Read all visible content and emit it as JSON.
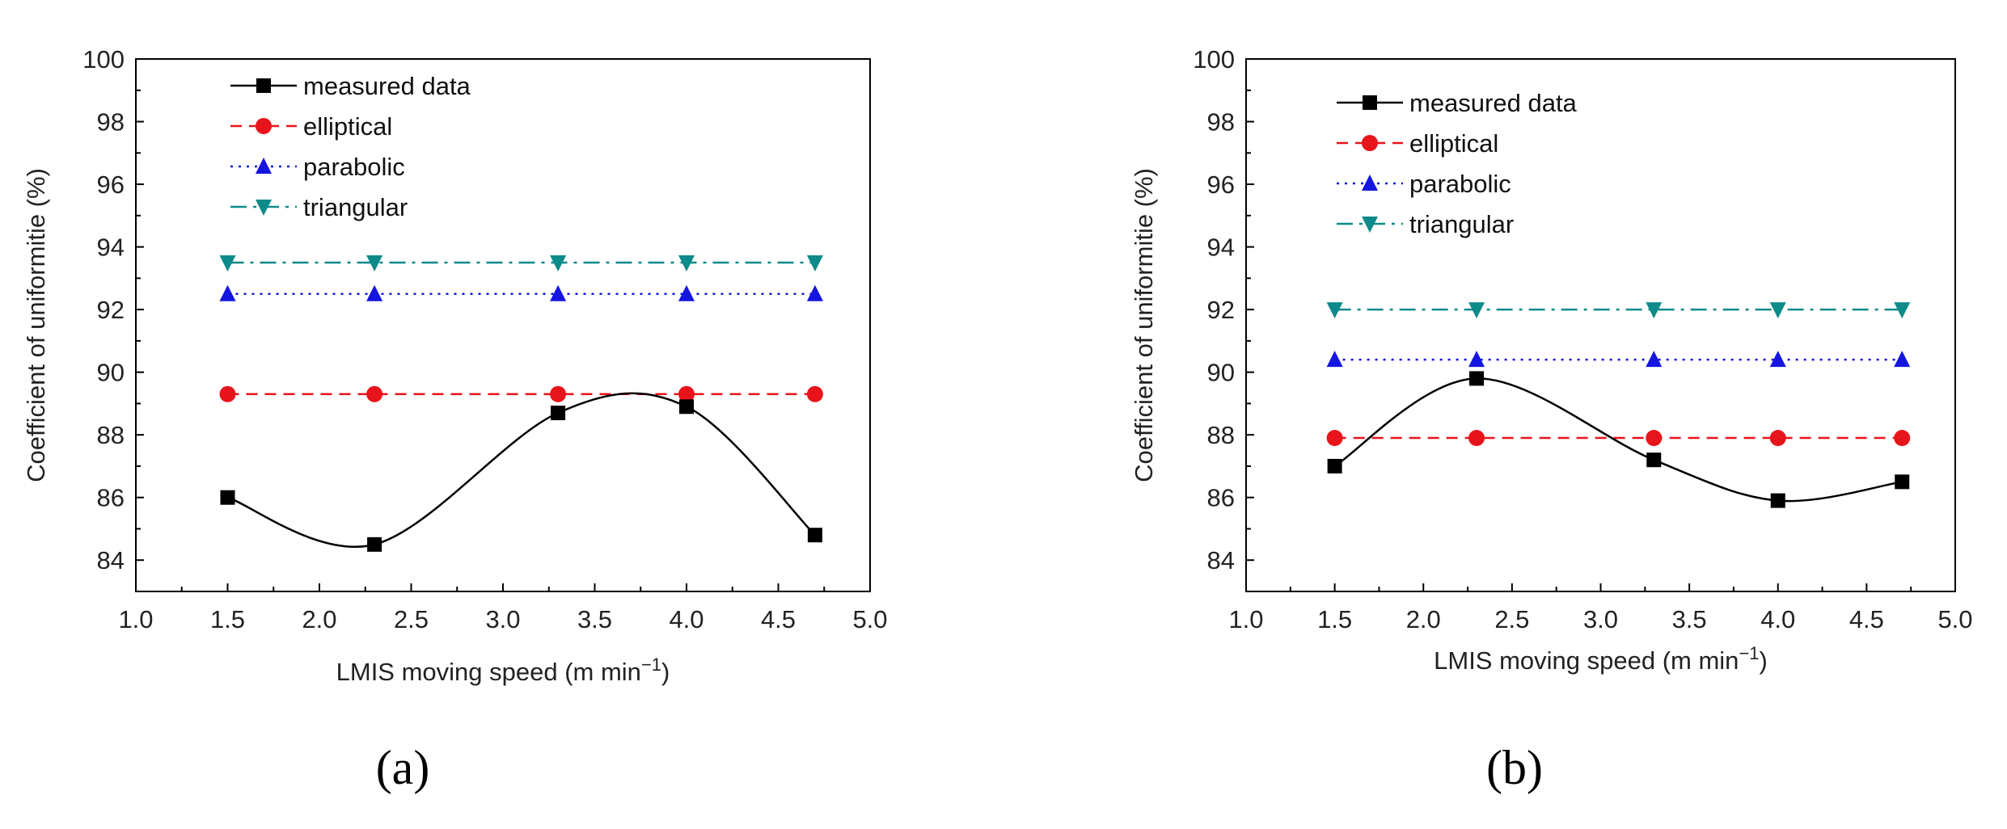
{
  "chart_data": [
    {
      "type": "line",
      "panel_label": "(a)",
      "xlabel": "LMIS moving speed (m min",
      "xlabel_sup": "−1",
      "xlabel_end": ")",
      "ylabel": "Coefficient of uniformitie (%)",
      "xlim": [
        1.0,
        5.0
      ],
      "ylim": [
        83,
        100
      ],
      "xticks": [
        "1.0",
        "1.5",
        "2.0",
        "2.5",
        "3.0",
        "3.5",
        "4.0",
        "4.5",
        "5.0"
      ],
      "yticks": [
        "84",
        "86",
        "88",
        "90",
        "92",
        "94",
        "96",
        "98",
        "100"
      ],
      "x": [
        1.5,
        2.3,
        3.3,
        4.0,
        4.7
      ],
      "legend_position": "top-left",
      "series": [
        {
          "name": "measured data",
          "values": [
            86.0,
            84.5,
            88.7,
            88.9,
            84.8
          ],
          "color": "#000000",
          "marker": "square",
          "style": "solid-smooth"
        },
        {
          "name": "elliptical",
          "values": [
            89.3,
            89.3,
            89.3,
            89.3,
            89.3
          ],
          "color": "#e8141b",
          "marker": "circle",
          "style": "dashed"
        },
        {
          "name": "parabolic",
          "values": [
            92.5,
            92.5,
            92.5,
            92.5,
            92.5
          ],
          "color": "#1515e0",
          "marker": "triangle-up",
          "style": "dotted"
        },
        {
          "name": "triangular",
          "values": [
            93.5,
            93.5,
            93.5,
            93.5,
            93.5
          ],
          "color": "#0d8a8a",
          "marker": "triangle-down",
          "style": "dashdot"
        }
      ]
    },
    {
      "type": "line",
      "panel_label": "(b)",
      "xlabel": "LMIS moving speed (m min",
      "xlabel_sup": "−1",
      "xlabel_end": ")",
      "ylabel": "Coefficient of uniformitie (%)",
      "xlim": [
        1.0,
        5.0
      ],
      "ylim": [
        83,
        100
      ],
      "xticks": [
        "1.0",
        "1.5",
        "2.0",
        "2.5",
        "3.0",
        "3.5",
        "4.0",
        "4.5",
        "5.0"
      ],
      "yticks": [
        "84",
        "86",
        "88",
        "90",
        "92",
        "94",
        "96",
        "98",
        "100"
      ],
      "x": [
        1.5,
        2.3,
        3.3,
        4.0,
        4.7
      ],
      "legend_position": "top-left",
      "series": [
        {
          "name": "measured data",
          "values": [
            87.0,
            89.8,
            87.2,
            85.9,
            86.5
          ],
          "color": "#000000",
          "marker": "square",
          "style": "solid-smooth"
        },
        {
          "name": "elliptical",
          "values": [
            87.9,
            87.9,
            87.9,
            87.9,
            87.9
          ],
          "color": "#e8141b",
          "marker": "circle",
          "style": "dashed"
        },
        {
          "name": "parabolic",
          "values": [
            90.4,
            90.4,
            90.4,
            90.4,
            90.4
          ],
          "color": "#1515e0",
          "marker": "triangle-up",
          "style": "dotted"
        },
        {
          "name": "triangular",
          "values": [
            92.0,
            92.0,
            92.0,
            92.0,
            92.0
          ],
          "color": "#0d8a8a",
          "marker": "triangle-down",
          "style": "dashdot"
        }
      ]
    }
  ]
}
